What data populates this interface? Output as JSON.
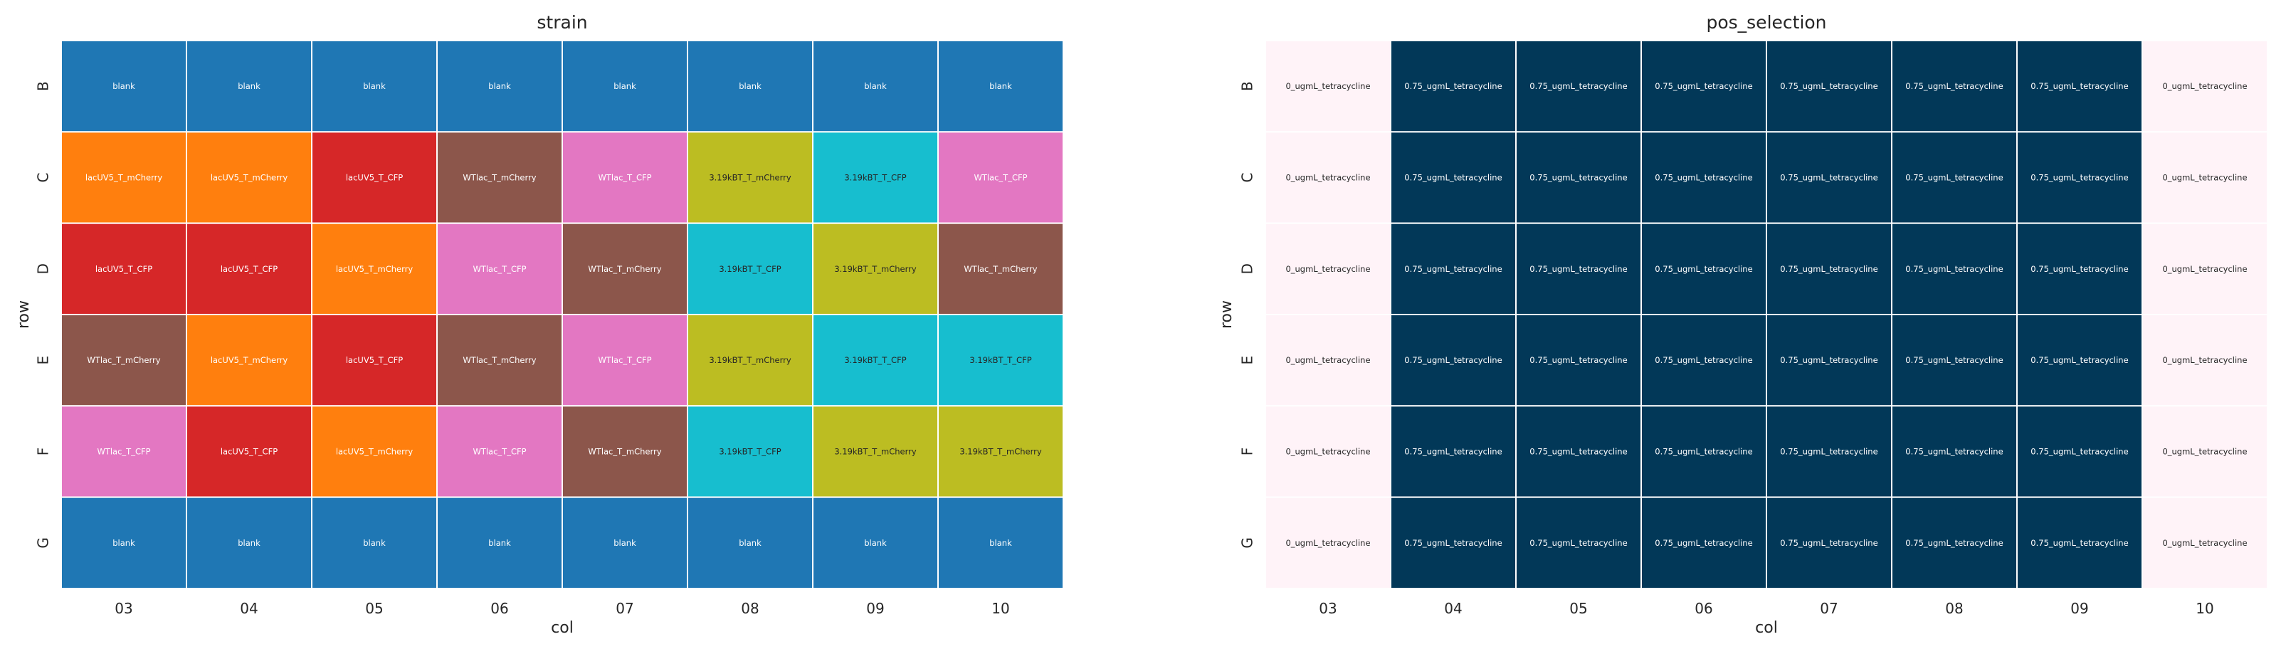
{
  "chart_data": [
    {
      "type": "heatmap",
      "title": "strain",
      "xlabel": "col",
      "ylabel": "row",
      "columns": [
        "03",
        "04",
        "05",
        "06",
        "07",
        "08",
        "09",
        "10"
      ],
      "rows": [
        "B",
        "C",
        "D",
        "E",
        "F",
        "G"
      ],
      "cells": [
        [
          "blank",
          "blank",
          "blank",
          "blank",
          "blank",
          "blank",
          "blank",
          "blank"
        ],
        [
          "lacUV5_T_mCherry",
          "lacUV5_T_mCherry",
          "lacUV5_T_CFP",
          "WTlac_T_mCherry",
          "WTlac_T_CFP",
          "3.19kBT_T_mCherry",
          "3.19kBT_T_CFP",
          "WTlac_T_CFP"
        ],
        [
          "lacUV5_T_CFP",
          "lacUV5_T_CFP",
          "lacUV5_T_mCherry",
          "WTlac_T_CFP",
          "WTlac_T_mCherry",
          "3.19kBT_T_CFP",
          "3.19kBT_T_mCherry",
          "WTlac_T_mCherry"
        ],
        [
          "WTlac_T_mCherry",
          "lacUV5_T_mCherry",
          "lacUV5_T_CFP",
          "WTlac_T_mCherry",
          "WTlac_T_CFP",
          "3.19kBT_T_mCherry",
          "3.19kBT_T_CFP",
          "3.19kBT_T_CFP"
        ],
        [
          "WTlac_T_CFP",
          "lacUV5_T_CFP",
          "lacUV5_T_mCherry",
          "WTlac_T_CFP",
          "WTlac_T_mCherry",
          "3.19kBT_T_CFP",
          "3.19kBT_T_mCherry",
          "3.19kBT_T_mCherry"
        ],
        [
          "blank",
          "blank",
          "blank",
          "blank",
          "blank",
          "blank",
          "blank",
          "blank"
        ]
      ],
      "color_map": {
        "blank": "#1f77b4",
        "lacUV5_T_mCherry": "#ff7f0e",
        "lacUV5_T_CFP": "#d62728",
        "WTlac_T_mCherry": "#8c564b",
        "WTlac_T_CFP": "#e377c2",
        "3.19kBT_T_mCherry": "#bcbd22",
        "3.19kBT_T_CFP": "#17becf"
      },
      "text_color_map": {
        "blank": "#ffffff",
        "lacUV5_T_mCherry": "#ffffff",
        "lacUV5_T_CFP": "#ffffff",
        "WTlac_T_mCherry": "#ffffff",
        "WTlac_T_CFP": "#ffffff",
        "3.19kBT_T_mCherry": "#262626",
        "3.19kBT_T_CFP": "#262626"
      },
      "grid": false
    },
    {
      "type": "heatmap",
      "title": "pos_selection",
      "xlabel": "col",
      "ylabel": "row",
      "columns": [
        "03",
        "04",
        "05",
        "06",
        "07",
        "08",
        "09",
        "10"
      ],
      "rows": [
        "B",
        "C",
        "D",
        "E",
        "F",
        "G"
      ],
      "cells": [
        [
          "0_ugmL_tetracycline",
          "0.75_ugmL_tetracycline",
          "0.75_ugmL_tetracycline",
          "0.75_ugmL_tetracycline",
          "0.75_ugmL_tetracycline",
          "0.75_ugmL_tetracycline",
          "0.75_ugmL_tetracycline",
          "0_ugmL_tetracycline"
        ],
        [
          "0_ugmL_tetracycline",
          "0.75_ugmL_tetracycline",
          "0.75_ugmL_tetracycline",
          "0.75_ugmL_tetracycline",
          "0.75_ugmL_tetracycline",
          "0.75_ugmL_tetracycline",
          "0.75_ugmL_tetracycline",
          "0_ugmL_tetracycline"
        ],
        [
          "0_ugmL_tetracycline",
          "0.75_ugmL_tetracycline",
          "0.75_ugmL_tetracycline",
          "0.75_ugmL_tetracycline",
          "0.75_ugmL_tetracycline",
          "0.75_ugmL_tetracycline",
          "0.75_ugmL_tetracycline",
          "0_ugmL_tetracycline"
        ],
        [
          "0_ugmL_tetracycline",
          "0.75_ugmL_tetracycline",
          "0.75_ugmL_tetracycline",
          "0.75_ugmL_tetracycline",
          "0.75_ugmL_tetracycline",
          "0.75_ugmL_tetracycline",
          "0.75_ugmL_tetracycline",
          "0_ugmL_tetracycline"
        ],
        [
          "0_ugmL_tetracycline",
          "0.75_ugmL_tetracycline",
          "0.75_ugmL_tetracycline",
          "0.75_ugmL_tetracycline",
          "0.75_ugmL_tetracycline",
          "0.75_ugmL_tetracycline",
          "0.75_ugmL_tetracycline",
          "0_ugmL_tetracycline"
        ],
        [
          "0_ugmL_tetracycline",
          "0.75_ugmL_tetracycline",
          "0.75_ugmL_tetracycline",
          "0.75_ugmL_tetracycline",
          "0.75_ugmL_tetracycline",
          "0.75_ugmL_tetracycline",
          "0.75_ugmL_tetracycline",
          "0_ugmL_tetracycline"
        ]
      ],
      "color_map": {
        "0_ugmL_tetracycline": "#fff3f8",
        "0.75_ugmL_tetracycline": "#023858"
      },
      "text_color_map": {
        "0_ugmL_tetracycline": "#262626",
        "0.75_ugmL_tetracycline": "#ffffff"
      },
      "grid": false
    }
  ]
}
